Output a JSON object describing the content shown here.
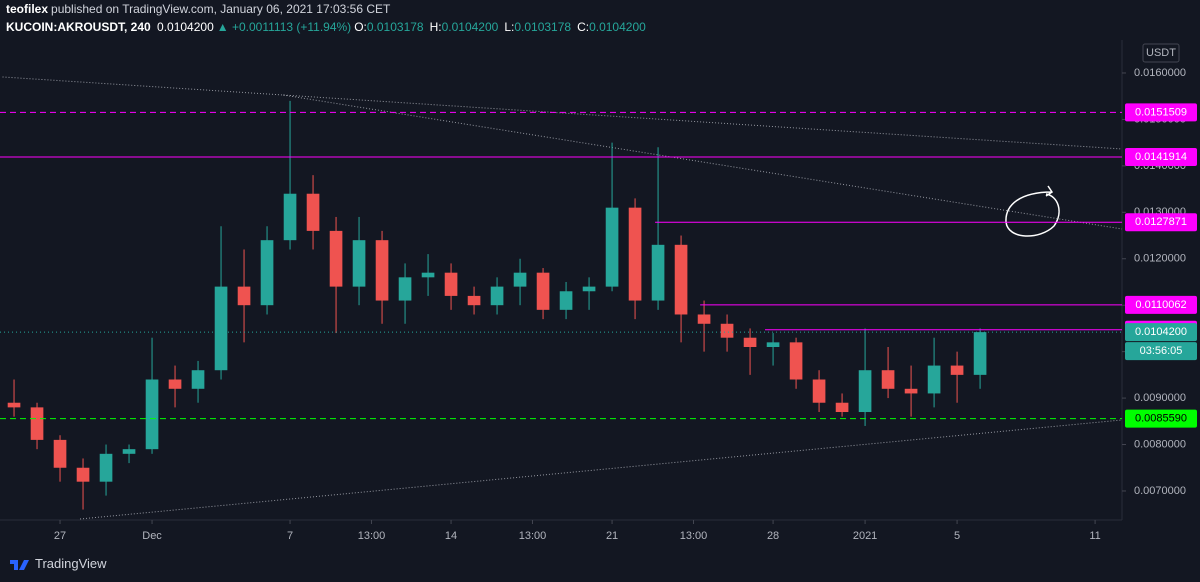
{
  "header": {
    "author": "teofilex",
    "published": "published on TradingView.com, January 06, 2021 17:03:56 CET",
    "symbol": "KUCOIN:AKROUSDT, 240",
    "last": "0.0104200",
    "change": "▲ +0.0011113 (+11.94%)",
    "ohlc": [
      {
        "label": "O:",
        "value": "0.0103178"
      },
      {
        "label": "H:",
        "value": "0.0104200"
      },
      {
        "label": "L:",
        "value": "0.0103178"
      },
      {
        "label": "C:",
        "value": "0.0104200"
      }
    ]
  },
  "footer": {
    "brand": "TradingView"
  },
  "chart_data": {
    "type": "candlestick",
    "currency": "USDT",
    "xlim": [
      24.39,
      73.17
    ],
    "ylim": [
      0.006375,
      0.01671
    ],
    "xticks": [
      {
        "value": 27,
        "label": "27"
      },
      {
        "value": 31,
        "label": "Dec"
      },
      {
        "value": 37,
        "label": "7"
      },
      {
        "value": 40.54,
        "label": "13:00"
      },
      {
        "value": 44,
        "label": "14"
      },
      {
        "value": 47.54,
        "label": "13:00"
      },
      {
        "value": 51,
        "label": "21"
      },
      {
        "value": 54.54,
        "label": "13:00"
      },
      {
        "value": 58,
        "label": "28"
      },
      {
        "value": 62,
        "label": "2021"
      },
      {
        "value": 66,
        "label": "5"
      },
      {
        "value": 72,
        "label": "11"
      }
    ],
    "yticks": [
      {
        "value": 0.007,
        "label": "0.0070000"
      },
      {
        "value": 0.008,
        "label": "0.0080000"
      },
      {
        "value": 0.009,
        "label": "0.0090000"
      },
      {
        "value": 0.01,
        "label": "0.0100000"
      },
      {
        "value": 0.011,
        "label": "0.0110000"
      },
      {
        "value": 0.012,
        "label": "0.0120000"
      },
      {
        "value": 0.013,
        "label": "0.0130000"
      },
      {
        "value": 0.014,
        "label": "0.0140000"
      },
      {
        "value": 0.015,
        "label": "0.0150000"
      },
      {
        "value": 0.016,
        "label": "0.0160000"
      }
    ],
    "series": [
      {
        "name": "AKROUSDT",
        "up_color": "#26a69a",
        "down_color": "#ef5350",
        "x": [
          25,
          26,
          27,
          28,
          29,
          30,
          31,
          32,
          33,
          34,
          35,
          36,
          37,
          38,
          39,
          40,
          41,
          42,
          43,
          44,
          45,
          46,
          47,
          48,
          49,
          50,
          51,
          52,
          53,
          54,
          55,
          56,
          57,
          58,
          59,
          60,
          61,
          62,
          63,
          64,
          65,
          66,
          67
        ],
        "open": [
          0.0089,
          0.0088,
          0.0081,
          0.0075,
          0.0072,
          0.0078,
          0.0079,
          0.0094,
          0.0092,
          0.0096,
          0.0114,
          0.011,
          0.0124,
          0.0134,
          0.0126,
          0.0114,
          0.0124,
          0.0111,
          0.0116,
          0.0117,
          0.0112,
          0.011,
          0.0114,
          0.0117,
          0.0109,
          0.0113,
          0.0114,
          0.0131,
          0.0111,
          0.0123,
          0.0108,
          0.0106,
          0.0103,
          0.0101,
          0.0102,
          0.0094,
          0.0089,
          0.0087,
          0.0096,
          0.0092,
          0.0091,
          0.0097,
          0.0095
        ],
        "high": [
          0.0094,
          0.0089,
          0.0082,
          0.0077,
          0.008,
          0.008,
          0.0103,
          0.0097,
          0.0098,
          0.0127,
          0.0122,
          0.0127,
          0.0154,
          0.0138,
          0.0129,
          0.0129,
          0.0126,
          0.0119,
          0.0121,
          0.0119,
          0.0114,
          0.0116,
          0.012,
          0.0118,
          0.0115,
          0.0116,
          0.0145,
          0.0133,
          0.0144,
          0.0125,
          0.0111,
          0.0108,
          0.0105,
          0.0104,
          0.0103,
          0.0096,
          0.0091,
          0.0105,
          0.0101,
          0.0097,
          0.0103,
          0.01,
          0.0105
        ],
        "low": [
          0.0086,
          0.0079,
          0.0072,
          0.0066,
          0.0069,
          0.0076,
          0.0078,
          0.0088,
          0.0089,
          0.0094,
          0.0102,
          0.0108,
          0.0122,
          0.0122,
          0.0104,
          0.011,
          0.0106,
          0.0106,
          0.0112,
          0.0109,
          0.0108,
          0.0108,
          0.011,
          0.0107,
          0.0107,
          0.0109,
          0.0113,
          0.0107,
          0.0109,
          0.0102,
          0.01,
          0.01,
          0.0095,
          0.0097,
          0.0092,
          0.0087,
          0.0086,
          0.0084,
          0.009,
          0.0086,
          0.0088,
          0.0089,
          0.0092
        ],
        "close": [
          0.0088,
          0.0081,
          0.0075,
          0.0072,
          0.0078,
          0.0079,
          0.0094,
          0.0092,
          0.0096,
          0.0114,
          0.011,
          0.0124,
          0.0134,
          0.0126,
          0.0114,
          0.0124,
          0.0111,
          0.0116,
          0.0117,
          0.0112,
          0.011,
          0.0114,
          0.0117,
          0.0109,
          0.0113,
          0.0114,
          0.0131,
          0.0111,
          0.0123,
          0.0108,
          0.0106,
          0.0103,
          0.0101,
          0.0102,
          0.0094,
          0.0089,
          0.0087,
          0.0096,
          0.0092,
          0.0091,
          0.0097,
          0.0095,
          0.01042
        ]
      }
    ],
    "trendlines": [
      {
        "x": [
          24.5,
          73.17
        ],
        "y": [
          0.015914,
          0.014364
        ],
        "color": "#9598a1"
      },
      {
        "x": [
          36.7,
          73.17
        ],
        "y": [
          0.015526,
          0.012641
        ],
        "color": "#9598a1"
      },
      {
        "x": [
          27.87,
          73.17
        ],
        "y": [
          0.006397,
          0.008529
        ],
        "color": "#9598a1"
      }
    ],
    "levels": [
      {
        "price": 0.0151509,
        "from": 24.39,
        "color": "#ff00ff",
        "style": "dashed",
        "text_color": "#ffffff"
      },
      {
        "price": 0.0141914,
        "from": 24.39,
        "color": "#ff00ff",
        "style": "solid",
        "text_color": "#ffffff"
      },
      {
        "price": 0.0127871,
        "from": 52.87,
        "color": "#ff00ff",
        "style": "solid",
        "text_color": "#ffffff"
      },
      {
        "price": 0.0110062,
        "from": 54.83,
        "color": "#ff00ff",
        "style": "solid",
        "text_color": "#ffffff"
      },
      {
        "price": 0.0104713,
        "from": 57.65,
        "color": "#ff00ff",
        "style": "solid",
        "text_color": "#ffffff"
      },
      {
        "price": {
          "value": 0.01042,
          "label": "0.0104200"
        },
        "from": 24.39,
        "color": "#26a69a",
        "style": "dotted",
        "text_color": "#ffffff",
        "countdown": "03:56:05"
      },
      {
        "price": {
          "value": 0.008559,
          "label": "0.0085590"
        },
        "from": 24.39,
        "color": "#00ff00",
        "style": "dashed",
        "text_color": "#000000"
      }
    ]
  }
}
